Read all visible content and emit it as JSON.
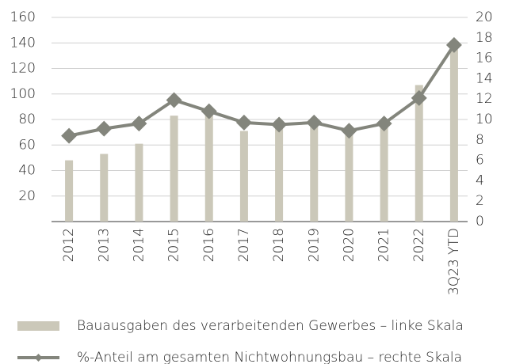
{
  "chart_data": {
    "type": "bar",
    "categories": [
      "2012",
      "2013",
      "2014",
      "2015",
      "2016",
      "2017",
      "2018",
      "2019",
      "2020",
      "2021",
      "2022",
      "3Q23 YTD"
    ],
    "series": [
      {
        "name": "Bauausgaben des verarbeitenden Gewerbes – linke Skala",
        "type": "bar",
        "color": "#cbc8b9",
        "values": [
          48,
          53,
          61,
          83,
          86,
          71,
          76,
          79,
          69,
          74,
          107,
          135
        ]
      },
      {
        "name": "%-Anteil am gesamten Nichtwohnungsbau – rechte Skala",
        "type": "line",
        "axis": "y2",
        "color": "#83857c",
        "values": [
          8.4,
          9.1,
          9.6,
          11.9,
          10.8,
          9.7,
          9.5,
          9.7,
          8.9,
          9.6,
          12.1,
          17.3
        ]
      }
    ],
    "ylim": [
      0,
      160
    ],
    "yticks": [
      20,
      40,
      60,
      80,
      100,
      120,
      140,
      160
    ],
    "y2lim": [
      0,
      20
    ],
    "y2ticks": [
      0,
      2,
      4,
      6,
      8,
      10,
      12,
      14,
      16,
      18,
      20
    ],
    "grid": true
  }
}
